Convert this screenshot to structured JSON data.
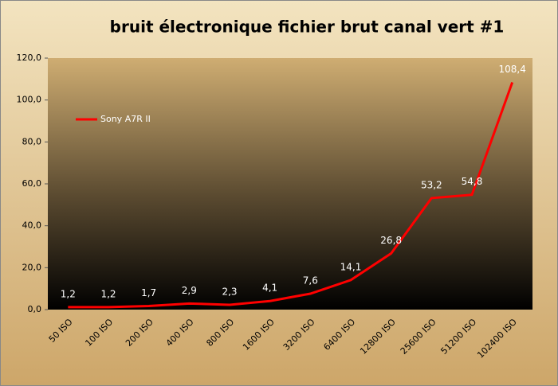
{
  "chart_data": {
    "type": "line",
    "title": "bruit électronique fichier brut canal vert #1",
    "categories": [
      "50 ISO",
      "100 ISO",
      "200 ISO",
      "400 ISO",
      "800 ISO",
      "1600 ISO",
      "3200 ISO",
      "6400 ISO",
      "12800 ISO",
      "25600 ISO",
      "51200 ISO",
      "102400 ISO"
    ],
    "series": [
      {
        "name": "Sony A7R II",
        "color": "#ff0000",
        "values": [
          1.2,
          1.2,
          1.7,
          2.9,
          2.3,
          4.1,
          7.6,
          14.1,
          26.8,
          53.2,
          54.8,
          108.4
        ],
        "value_labels": [
          "1,2",
          "1,2",
          "1,7",
          "2,9",
          "2,3",
          "4,1",
          "7,6",
          "14,1",
          "26,8",
          "53,2",
          "54,8",
          "108,4"
        ]
      }
    ],
    "ylim": [
      0,
      120
    ],
    "yticks": [
      {
        "value": 0,
        "label": "0,0"
      },
      {
        "value": 20,
        "label": "20,0"
      },
      {
        "value": 40,
        "label": "40,0"
      },
      {
        "value": 60,
        "label": "60,0"
      },
      {
        "value": 80,
        "label": "80,0"
      },
      {
        "value": 100,
        "label": "100,0"
      },
      {
        "value": 120,
        "label": "120,0"
      }
    ],
    "legend": "upper left"
  }
}
